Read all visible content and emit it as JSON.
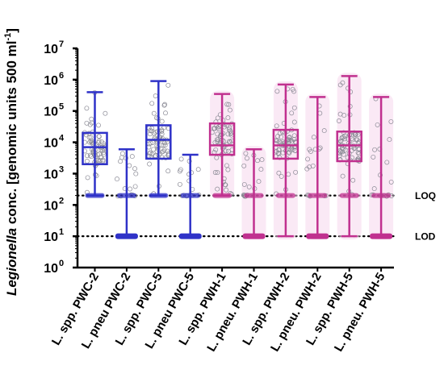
{
  "chart_data": {
    "type": "box",
    "y_scale": "log10",
    "ylim": [
      1,
      10000000
    ],
    "y_ticks": [
      {
        "base": "10",
        "exp": "0"
      },
      {
        "base": "10",
        "exp": "1"
      },
      {
        "base": "10",
        "exp": "2"
      },
      {
        "base": "10",
        "exp": "3"
      },
      {
        "base": "10",
        "exp": "4"
      },
      {
        "base": "10",
        "exp": "5"
      },
      {
        "base": "10",
        "exp": "6"
      },
      {
        "base": "10",
        "exp": "7"
      }
    ],
    "ylabel": {
      "italic": "Legionella",
      "rest": " conc. [genomic units 500 ml",
      "sup": "-1",
      "close": "]"
    },
    "reference_lines": [
      {
        "label": "LOQ",
        "value": 200
      },
      {
        "label": "LOD",
        "value": 10
      }
    ],
    "categories": [
      {
        "label": "L. spp. PWC-2",
        "color": "#2f32c8",
        "fill": "#d9dcf7",
        "whisker_min": 200,
        "q1": 2000,
        "median": 7000,
        "q3": 20000,
        "whisker_max": 400000
      },
      {
        "label": "L. pneu PWC-2",
        "color": "#2f32c8",
        "fill": "#d9dcf7",
        "whisker_min": 10,
        "q1": 10,
        "median": 10,
        "q3": 10,
        "whisker_max": 6000
      },
      {
        "label": "L. spp. PWC-5",
        "color": "#2f32c8",
        "fill": "#d9dcf7",
        "whisker_min": 200,
        "q1": 3000,
        "median": 12000,
        "q3": 35000,
        "whisker_max": 900000
      },
      {
        "label": "L. pneu PWC-5",
        "color": "#2f32c8",
        "fill": "#d9dcf7",
        "whisker_min": 10,
        "q1": 10,
        "median": 10,
        "q3": 10,
        "whisker_max": 4000
      },
      {
        "label": "L. spp. PWH-1",
        "color": "#c0308f",
        "fill": "#f6d7ec",
        "whisker_min": 200,
        "q1": 4000,
        "median": 8000,
        "q3": 40000,
        "whisker_max": 350000
      },
      {
        "label": "L. pneu. PWH-1",
        "color": "#c0308f",
        "fill": "#f6d7ec",
        "whisker_min": 10,
        "q1": 10,
        "median": 10,
        "q3": 10,
        "whisker_max": 6000
      },
      {
        "label": "L. spp. PWH-2",
        "color": "#c0308f",
        "fill": "#f6d7ec",
        "whisker_min": 10,
        "q1": 3000,
        "median": 8000,
        "q3": 25000,
        "whisker_max": 700000
      },
      {
        "label": "L. pneu. PWH-2",
        "color": "#c0308f",
        "fill": "#f6d7ec",
        "whisker_min": 10,
        "q1": 10,
        "median": 10,
        "q3": 10,
        "whisker_max": 280000
      },
      {
        "label": "L. spp. PWH-5",
        "color": "#c0308f",
        "fill": "#f6d7ec",
        "whisker_min": 10,
        "q1": 2500,
        "median": 8000,
        "q3": 22000,
        "whisker_max": 1300000
      },
      {
        "label": "L. pneu. PWH-5",
        "color": "#c0308f",
        "fill": "#f6d7ec",
        "whisker_min": 10,
        "q1": 10,
        "median": 10,
        "q3": 10,
        "whisker_max": 280000
      }
    ]
  }
}
